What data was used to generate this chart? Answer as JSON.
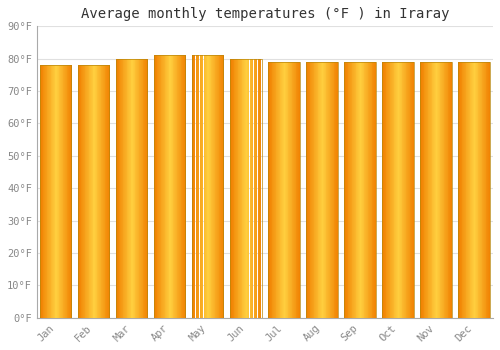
{
  "title": "Average monthly temperatures (°F ) in Iraray",
  "months": [
    "Jan",
    "Feb",
    "Mar",
    "Apr",
    "May",
    "Jun",
    "Jul",
    "Aug",
    "Sep",
    "Oct",
    "Nov",
    "Dec"
  ],
  "values": [
    78,
    78,
    80,
    81,
    81,
    80,
    79,
    79,
    79,
    79,
    79,
    79
  ],
  "ylim": [
    0,
    90
  ],
  "yticks": [
    0,
    10,
    20,
    30,
    40,
    50,
    60,
    70,
    80,
    90
  ],
  "bar_color_center": "#FFD040",
  "bar_color_edge": "#F5A000",
  "bar_outline": "#B8860B",
  "background_color": "#FFFFFF",
  "plot_bg_color": "#FFFFFF",
  "grid_color": "#E0E0E0",
  "title_fontsize": 10,
  "tick_fontsize": 7.5,
  "font_family": "monospace",
  "tick_color": "#888888",
  "title_color": "#333333"
}
